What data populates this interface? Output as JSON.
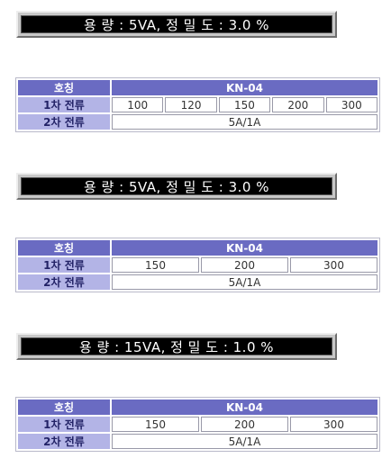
{
  "sections": [
    {
      "banner": "용 량 : 5VA, 정 밀 도 : 3.0 %",
      "table": {
        "head": [
          "호칭",
          "KN-04"
        ],
        "primary_label": "1차 전류",
        "primary_values": [
          "100",
          "120",
          "150",
          "200",
          "300"
        ],
        "secondary_label": "2차 전류",
        "secondary_value": "5A/1A"
      }
    },
    {
      "banner": "용 량 : 5VA, 정 밀 도 : 3.0 %",
      "table": {
        "head": [
          "호칭",
          "KN-04"
        ],
        "primary_label": "1차 전류",
        "primary_values": [
          "150",
          "200",
          "300"
        ],
        "secondary_label": "2차 전류",
        "secondary_value": "5A/1A"
      }
    },
    {
      "banner": "용 량 : 15VA, 정 밀 도 : 1.0 %",
      "table": {
        "head": [
          "호칭",
          "KN-04"
        ],
        "primary_label": "1차 전류",
        "primary_values": [
          "150",
          "200",
          "300"
        ],
        "secondary_label": "2차 전류",
        "secondary_value": "5A/1A"
      }
    }
  ]
}
